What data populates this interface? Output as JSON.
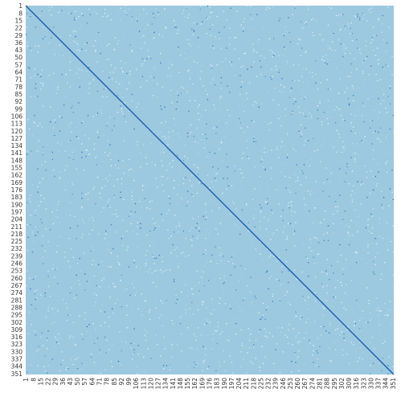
{
  "chart_data": {
    "type": "heatmap",
    "title": "",
    "xlabel": "",
    "ylabel": "",
    "n": 351,
    "row_labels": [
      "1",
      "8",
      "15",
      "22",
      "29",
      "36",
      "43",
      "50",
      "57",
      "64",
      "71",
      "78",
      "85",
      "92",
      "99",
      "106",
      "113",
      "120",
      "127",
      "134",
      "141",
      "148",
      "155",
      "162",
      "169",
      "176",
      "183",
      "190",
      "197",
      "204",
      "211",
      "218",
      "225",
      "232",
      "239",
      "246",
      "253",
      "260",
      "267",
      "274",
      "281",
      "288",
      "295",
      "302",
      "309",
      "316",
      "323",
      "330",
      "337",
      "344",
      "351"
    ],
    "col_labels": [
      "1",
      "8",
      "15",
      "22",
      "29",
      "36",
      "43",
      "50",
      "57",
      "64",
      "71",
      "78",
      "85",
      "92",
      "99",
      "106",
      "113",
      "120",
      "127",
      "134",
      "141",
      "148",
      "155",
      "162",
      "169",
      "176",
      "183",
      "190",
      "197",
      "204",
      "211",
      "218",
      "225",
      "232",
      "239",
      "246",
      "253",
      "260",
      "267",
      "274",
      "281",
      "288",
      "295",
      "302",
      "309",
      "316",
      "323",
      "330",
      "337",
      "344",
      "351"
    ],
    "background_value": 0.0,
    "diagonal_value": 1.0,
    "colors": {
      "background": "#9cc9e0",
      "low": "#eef6fb",
      "mid": "#b7d8ea",
      "high": "#2a6fb5",
      "diagonal": "#1f5fa8"
    }
  }
}
